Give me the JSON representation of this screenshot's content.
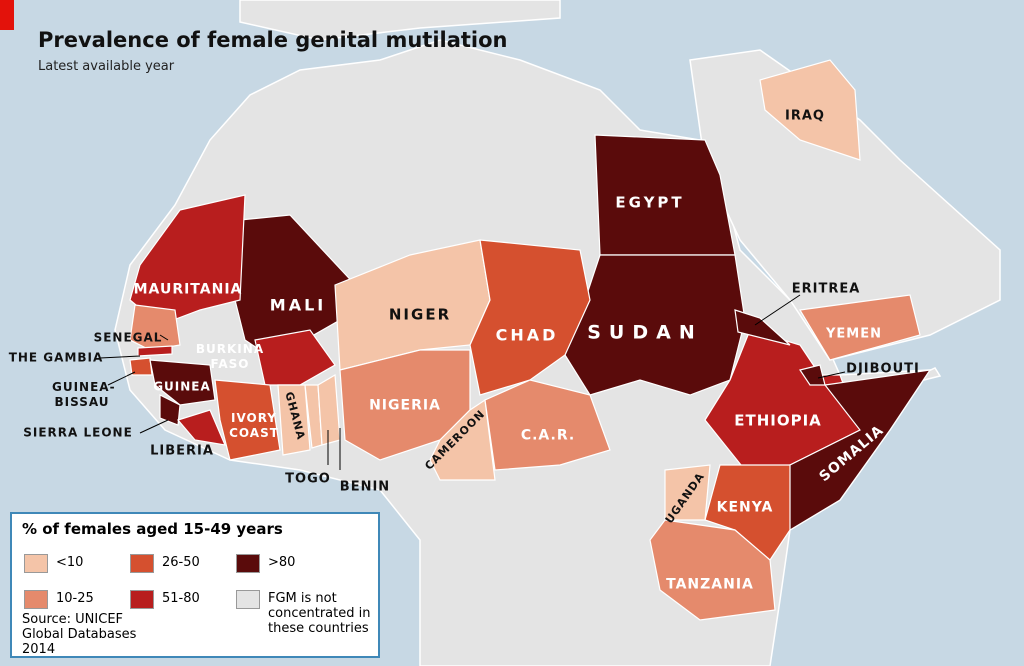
{
  "header": {
    "title": "Prevalence of female genital mutilation",
    "subtitle": "Latest available year"
  },
  "legend": {
    "title": "% of females aged 15-49 years",
    "classes": [
      {
        "label": "<10",
        "color": "#f4c4a8"
      },
      {
        "label": "10-25",
        "color": "#e58a6c"
      },
      {
        "label": "26-50",
        "color": "#d5502f"
      },
      {
        "label": "51-80",
        "color": "#b81e1e"
      },
      {
        "label": ">80",
        "color": "#5a0b0b"
      },
      {
        "label": "FGM is not concentrated in these countries",
        "color": "#e4e4e4"
      }
    ]
  },
  "source": "Source: UNICEF Global Databases 2014",
  "countries": [
    {
      "name": "EGYPT",
      "class": ">80"
    },
    {
      "name": "SUDAN",
      "class": ">80"
    },
    {
      "name": "MALI",
      "class": ">80"
    },
    {
      "name": "MAURITANIA",
      "class": "51-80"
    },
    {
      "name": "SENEGAL",
      "class": "10-25"
    },
    {
      "name": "THE GAMBIA",
      "class": "51-80"
    },
    {
      "name": "GUINEA-BISSAU",
      "class": "26-50"
    },
    {
      "name": "GUINEA",
      "class": ">80"
    },
    {
      "name": "SIERRA LEONE",
      "class": ">80"
    },
    {
      "name": "LIBERIA",
      "class": "51-80"
    },
    {
      "name": "BURKINA FASO",
      "class": "51-80"
    },
    {
      "name": "IVORY COAST",
      "class": "26-50"
    },
    {
      "name": "GHANA",
      "class": "<10"
    },
    {
      "name": "TOGO",
      "class": "<10"
    },
    {
      "name": "BENIN",
      "class": "<10"
    },
    {
      "name": "NIGER",
      "class": "<10"
    },
    {
      "name": "NIGERIA",
      "class": "10-25"
    },
    {
      "name": "CHAD",
      "class": "26-50"
    },
    {
      "name": "CAMEROON",
      "class": "<10"
    },
    {
      "name": "C.A.R.",
      "class": "10-25"
    },
    {
      "name": "ETHIOPIA",
      "class": "51-80"
    },
    {
      "name": "ERITREA",
      "class": ">80"
    },
    {
      "name": "DJIBOUTI",
      "class": ">80"
    },
    {
      "name": "SOMALIA",
      "class": ">80"
    },
    {
      "name": "KENYA",
      "class": "26-50"
    },
    {
      "name": "UGANDA",
      "class": "<10"
    },
    {
      "name": "TANZANIA",
      "class": "10-25"
    },
    {
      "name": "YEMEN",
      "class": "10-25"
    },
    {
      "name": "IRAQ",
      "class": "<10"
    }
  ]
}
